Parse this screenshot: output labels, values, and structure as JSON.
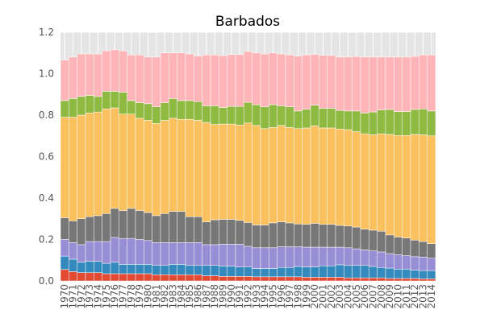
{
  "chart_data": {
    "type": "bar",
    "stacked": true,
    "title": "Barbados",
    "xlabel": "",
    "ylabel": "",
    "ylim": [
      0,
      1.2
    ],
    "yticks": [
      "0.0",
      "0.2",
      "0.4",
      "0.6",
      "0.8",
      "1.0",
      "1.2"
    ],
    "grid": true,
    "legend": "none",
    "categories": [
      "1970",
      "1971",
      "1972",
      "1973",
      "1974",
      "1975",
      "1976",
      "1977",
      "1978",
      "1979",
      "1980",
      "1981",
      "1982",
      "1983",
      "1984",
      "1985",
      "1986",
      "1987",
      "1988",
      "1989",
      "1990",
      "1991",
      "1992",
      "1993",
      "1994",
      "1995",
      "1996",
      "1997",
      "1998",
      "1999",
      "2000",
      "2001",
      "2002",
      "2003",
      "2004",
      "2005",
      "2006",
      "2007",
      "2008",
      "2009",
      "2010",
      "2011",
      "2012",
      "2013",
      "2014"
    ],
    "series": [
      {
        "color": "#e24a33",
        "values": [
          0.055,
          0.045,
          0.04,
          0.04,
          0.04,
          0.035,
          0.035,
          0.035,
          0.035,
          0.035,
          0.035,
          0.03,
          0.03,
          0.03,
          0.03,
          0.03,
          0.03,
          0.025,
          0.025,
          0.022,
          0.022,
          0.022,
          0.022,
          0.02,
          0.02,
          0.02,
          0.02,
          0.02,
          0.02,
          0.018,
          0.018,
          0.018,
          0.018,
          0.018,
          0.015,
          0.015,
          0.015,
          0.015,
          0.015,
          0.012,
          0.012,
          0.012,
          0.012,
          0.01,
          0.01
        ]
      },
      {
        "color": "#348abd",
        "values": [
          0.065,
          0.06,
          0.05,
          0.055,
          0.055,
          0.05,
          0.055,
          0.045,
          0.045,
          0.045,
          0.045,
          0.045,
          0.045,
          0.05,
          0.05,
          0.045,
          0.045,
          0.05,
          0.05,
          0.05,
          0.05,
          0.045,
          0.045,
          0.04,
          0.04,
          0.04,
          0.045,
          0.045,
          0.05,
          0.05,
          0.05,
          0.055,
          0.055,
          0.06,
          0.06,
          0.06,
          0.06,
          0.055,
          0.05,
          0.05,
          0.045,
          0.045,
          0.04,
          0.04,
          0.04
        ]
      },
      {
        "color": "#988ed5",
        "values": [
          0.08,
          0.08,
          0.085,
          0.095,
          0.095,
          0.105,
          0.12,
          0.125,
          0.125,
          0.12,
          0.115,
          0.11,
          0.11,
          0.105,
          0.105,
          0.11,
          0.11,
          0.1,
          0.1,
          0.105,
          0.105,
          0.11,
          0.1,
          0.1,
          0.1,
          0.1,
          0.1,
          0.1,
          0.095,
          0.095,
          0.095,
          0.09,
          0.09,
          0.085,
          0.085,
          0.08,
          0.075,
          0.075,
          0.075,
          0.07,
          0.07,
          0.065,
          0.065,
          0.065,
          0.06
        ]
      },
      {
        "color": "#777777",
        "values": [
          0.105,
          0.105,
          0.125,
          0.12,
          0.125,
          0.135,
          0.14,
          0.135,
          0.145,
          0.14,
          0.135,
          0.13,
          0.14,
          0.15,
          0.15,
          0.125,
          0.125,
          0.11,
          0.12,
          0.12,
          0.12,
          0.115,
          0.115,
          0.11,
          0.11,
          0.12,
          0.12,
          0.115,
          0.11,
          0.11,
          0.115,
          0.11,
          0.11,
          0.105,
          0.105,
          0.105,
          0.1,
          0.1,
          0.1,
          0.09,
          0.085,
          0.085,
          0.08,
          0.075,
          0.07
        ]
      },
      {
        "color": "#fbc15e",
        "values": [
          0.485,
          0.5,
          0.5,
          0.5,
          0.5,
          0.505,
          0.485,
          0.465,
          0.455,
          0.445,
          0.445,
          0.445,
          0.45,
          0.45,
          0.445,
          0.47,
          0.465,
          0.48,
          0.46,
          0.46,
          0.46,
          0.46,
          0.48,
          0.48,
          0.465,
          0.46,
          0.465,
          0.46,
          0.46,
          0.465,
          0.47,
          0.465,
          0.465,
          0.465,
          0.465,
          0.46,
          0.46,
          0.46,
          0.47,
          0.485,
          0.49,
          0.495,
          0.51,
          0.515,
          0.52
        ]
      },
      {
        "color": "#8eba42",
        "values": [
          0.08,
          0.09,
          0.09,
          0.085,
          0.075,
          0.085,
          0.08,
          0.105,
          0.065,
          0.075,
          0.08,
          0.08,
          0.085,
          0.095,
          0.09,
          0.09,
          0.09,
          0.08,
          0.09,
          0.08,
          0.085,
          0.09,
          0.1,
          0.1,
          0.105,
          0.11,
          0.095,
          0.1,
          0.085,
          0.09,
          0.1,
          0.095,
          0.095,
          0.09,
          0.09,
          0.1,
          0.1,
          0.11,
          0.115,
          0.12,
          0.115,
          0.115,
          0.12,
          0.125,
          0.12
        ]
      },
      {
        "color": "#ffb5b8",
        "values": [
          0.195,
          0.2,
          0.205,
          0.2,
          0.205,
          0.195,
          0.2,
          0.2,
          0.22,
          0.23,
          0.225,
          0.24,
          0.24,
          0.22,
          0.23,
          0.225,
          0.22,
          0.245,
          0.245,
          0.25,
          0.25,
          0.25,
          0.245,
          0.25,
          0.255,
          0.25,
          0.25,
          0.25,
          0.265,
          0.262,
          0.245,
          0.255,
          0.255,
          0.257,
          0.26,
          0.262,
          0.27,
          0.265,
          0.255,
          0.253,
          0.263,
          0.263,
          0.256,
          0.26,
          0.27
        ]
      }
    ]
  }
}
